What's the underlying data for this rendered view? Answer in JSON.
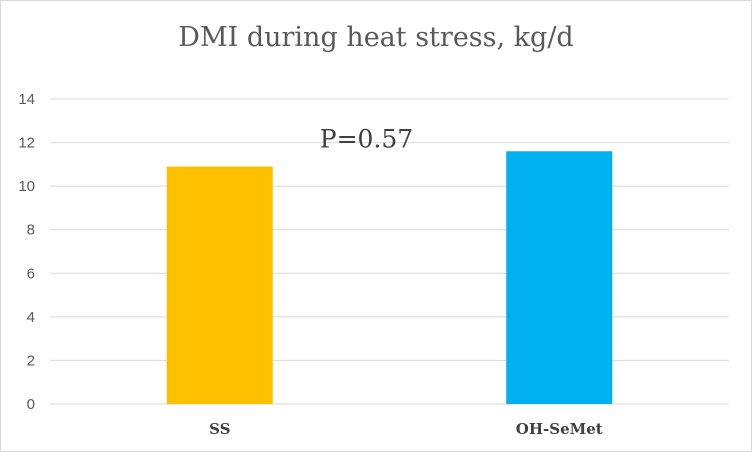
{
  "chart_data": {
    "type": "bar",
    "title": "DMI during heat stress, kg/d",
    "categories": [
      "SS",
      "OH-SeMet"
    ],
    "values": [
      10.9,
      11.6
    ],
    "colors": [
      "#FFC000",
      "#00B0F0"
    ],
    "ylim": [
      0,
      14
    ],
    "yticks": [
      0,
      2,
      4,
      6,
      8,
      10,
      12,
      14
    ],
    "grid": true,
    "legend": "none",
    "xlabel": "",
    "ylabel": "",
    "annotations": [
      {
        "text": "P=0.57",
        "x": "SS",
        "y": 12
      }
    ]
  }
}
